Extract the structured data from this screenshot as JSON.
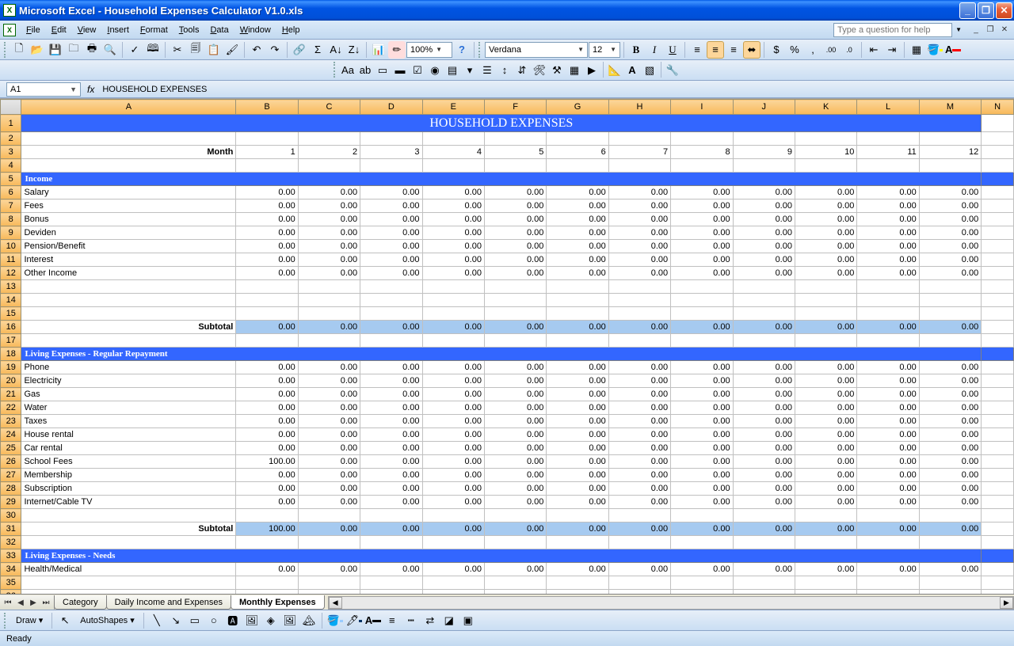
{
  "window": {
    "title": "Microsoft Excel - Household Expenses Calculator V1.0.xls"
  },
  "menu": {
    "items": [
      "File",
      "Edit",
      "View",
      "Insert",
      "Format",
      "Tools",
      "Data",
      "Window",
      "Help"
    ],
    "helpPlaceholder": "Type a question for help"
  },
  "toolbar": {
    "zoom": "100%",
    "font": "Verdana",
    "fontSize": "12"
  },
  "formula": {
    "nameBox": "A1",
    "fx": "fx",
    "value": "HOUSEHOLD EXPENSES"
  },
  "columns": [
    "A",
    "B",
    "C",
    "D",
    "E",
    "F",
    "G",
    "H",
    "I",
    "J",
    "K",
    "L",
    "M",
    "N"
  ],
  "sheet": {
    "title": "HOUSEHOLD EXPENSES",
    "monthLabel": "Month",
    "months": [
      1,
      2,
      3,
      4,
      5,
      6,
      7,
      8,
      9,
      10,
      11,
      12
    ],
    "subtotalLabel": "Subtotal",
    "sections": [
      {
        "name": "Income",
        "items": [
          {
            "label": "Salary",
            "values": [
              "0.00",
              "0.00",
              "0.00",
              "0.00",
              "0.00",
              "0.00",
              "0.00",
              "0.00",
              "0.00",
              "0.00",
              "0.00",
              "0.00"
            ]
          },
          {
            "label": "Fees",
            "values": [
              "0.00",
              "0.00",
              "0.00",
              "0.00",
              "0.00",
              "0.00",
              "0.00",
              "0.00",
              "0.00",
              "0.00",
              "0.00",
              "0.00"
            ]
          },
          {
            "label": "Bonus",
            "values": [
              "0.00",
              "0.00",
              "0.00",
              "0.00",
              "0.00",
              "0.00",
              "0.00",
              "0.00",
              "0.00",
              "0.00",
              "0.00",
              "0.00"
            ]
          },
          {
            "label": "Deviden",
            "values": [
              "0.00",
              "0.00",
              "0.00",
              "0.00",
              "0.00",
              "0.00",
              "0.00",
              "0.00",
              "0.00",
              "0.00",
              "0.00",
              "0.00"
            ]
          },
          {
            "label": "Pension/Benefit",
            "values": [
              "0.00",
              "0.00",
              "0.00",
              "0.00",
              "0.00",
              "0.00",
              "0.00",
              "0.00",
              "0.00",
              "0.00",
              "0.00",
              "0.00"
            ]
          },
          {
            "label": "Interest",
            "values": [
              "0.00",
              "0.00",
              "0.00",
              "0.00",
              "0.00",
              "0.00",
              "0.00",
              "0.00",
              "0.00",
              "0.00",
              "0.00",
              "0.00"
            ]
          },
          {
            "label": "Other Income",
            "values": [
              "0.00",
              "0.00",
              "0.00",
              "0.00",
              "0.00",
              "0.00",
              "0.00",
              "0.00",
              "0.00",
              "0.00",
              "0.00",
              "0.00"
            ]
          }
        ],
        "blanks": 3,
        "subtotal": [
          "0.00",
          "0.00",
          "0.00",
          "0.00",
          "0.00",
          "0.00",
          "0.00",
          "0.00",
          "0.00",
          "0.00",
          "0.00",
          "0.00"
        ]
      },
      {
        "name": "Living Expenses - Regular Repayment",
        "items": [
          {
            "label": "Phone",
            "values": [
              "0.00",
              "0.00",
              "0.00",
              "0.00",
              "0.00",
              "0.00",
              "0.00",
              "0.00",
              "0.00",
              "0.00",
              "0.00",
              "0.00"
            ]
          },
          {
            "label": "Electricity",
            "values": [
              "0.00",
              "0.00",
              "0.00",
              "0.00",
              "0.00",
              "0.00",
              "0.00",
              "0.00",
              "0.00",
              "0.00",
              "0.00",
              "0.00"
            ]
          },
          {
            "label": "Gas",
            "values": [
              "0.00",
              "0.00",
              "0.00",
              "0.00",
              "0.00",
              "0.00",
              "0.00",
              "0.00",
              "0.00",
              "0.00",
              "0.00",
              "0.00"
            ]
          },
          {
            "label": "Water",
            "values": [
              "0.00",
              "0.00",
              "0.00",
              "0.00",
              "0.00",
              "0.00",
              "0.00",
              "0.00",
              "0.00",
              "0.00",
              "0.00",
              "0.00"
            ]
          },
          {
            "label": "Taxes",
            "values": [
              "0.00",
              "0.00",
              "0.00",
              "0.00",
              "0.00",
              "0.00",
              "0.00",
              "0.00",
              "0.00",
              "0.00",
              "0.00",
              "0.00"
            ]
          },
          {
            "label": "House rental",
            "values": [
              "0.00",
              "0.00",
              "0.00",
              "0.00",
              "0.00",
              "0.00",
              "0.00",
              "0.00",
              "0.00",
              "0.00",
              "0.00",
              "0.00"
            ]
          },
          {
            "label": "Car rental",
            "values": [
              "0.00",
              "0.00",
              "0.00",
              "0.00",
              "0.00",
              "0.00",
              "0.00",
              "0.00",
              "0.00",
              "0.00",
              "0.00",
              "0.00"
            ]
          },
          {
            "label": "School Fees",
            "values": [
              "100.00",
              "0.00",
              "0.00",
              "0.00",
              "0.00",
              "0.00",
              "0.00",
              "0.00",
              "0.00",
              "0.00",
              "0.00",
              "0.00"
            ]
          },
          {
            "label": "Membership",
            "values": [
              "0.00",
              "0.00",
              "0.00",
              "0.00",
              "0.00",
              "0.00",
              "0.00",
              "0.00",
              "0.00",
              "0.00",
              "0.00",
              "0.00"
            ]
          },
          {
            "label": "Subscription",
            "values": [
              "0.00",
              "0.00",
              "0.00",
              "0.00",
              "0.00",
              "0.00",
              "0.00",
              "0.00",
              "0.00",
              "0.00",
              "0.00",
              "0.00"
            ]
          },
          {
            "label": "Internet/Cable TV",
            "values": [
              "0.00",
              "0.00",
              "0.00",
              "0.00",
              "0.00",
              "0.00",
              "0.00",
              "0.00",
              "0.00",
              "0.00",
              "0.00",
              "0.00"
            ]
          }
        ],
        "blanks": 1,
        "subtotal": [
          "100.00",
          "0.00",
          "0.00",
          "0.00",
          "0.00",
          "0.00",
          "0.00",
          "0.00",
          "0.00",
          "0.00",
          "0.00",
          "0.00"
        ]
      },
      {
        "name": "Living Expenses - Needs",
        "items": [
          {
            "label": "Health/Medical",
            "values": [
              "0.00",
              "0.00",
              "0.00",
              "0.00",
              "0.00",
              "0.00",
              "0.00",
              "0.00",
              "0.00",
              "0.00",
              "0.00",
              "0.00"
            ]
          }
        ],
        "blanks": 0,
        "subtotal": null
      }
    ]
  },
  "tabs": [
    "Category",
    "Daily Income and Expenses",
    "Monthly Expenses"
  ],
  "activeTab": 2,
  "drawLabel": "Draw",
  "autoshapesLabel": "AutoShapes",
  "status": "Ready",
  "colors": {
    "sectionBg": "#3366ff",
    "subtotalBg": "#a6caf0",
    "colHeaderBg": "#f8b95a"
  }
}
